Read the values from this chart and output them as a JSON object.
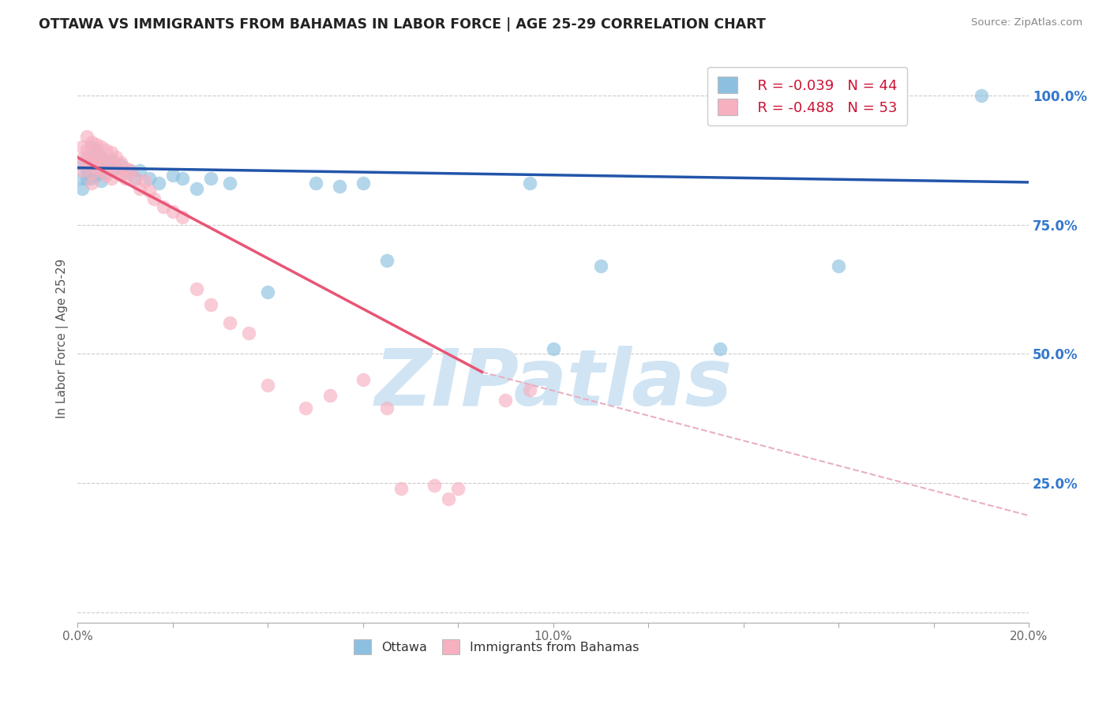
{
  "title": "OTTAWA VS IMMIGRANTS FROM BAHAMAS IN LABOR FORCE | AGE 25-29 CORRELATION CHART",
  "source_text": "Source: ZipAtlas.com",
  "ylabel": "In Labor Force | Age 25-29",
  "right_ytick_labels": [
    "100.0%",
    "75.0%",
    "50.0%",
    "25.0%",
    ""
  ],
  "right_ytick_values": [
    1.0,
    0.75,
    0.5,
    0.25,
    0.0
  ],
  "xlim": [
    0.0,
    0.2
  ],
  "ylim": [
    -0.02,
    1.08
  ],
  "xtick_labels": [
    "0.0%",
    "",
    "",
    "",
    "",
    "10.0%",
    "",
    "",
    "",
    "",
    "20.0%"
  ],
  "xtick_values": [
    0.0,
    0.02,
    0.04,
    0.06,
    0.08,
    0.1,
    0.12,
    0.14,
    0.16,
    0.18,
    0.2
  ],
  "legend_r_ottawa": "R = -0.039",
  "legend_n_ottawa": "N = 44",
  "legend_r_bahamas": "R = -0.488",
  "legend_n_bahamas": "N = 53",
  "ottawa_color": "#8dc0e0",
  "bahamas_color": "#f7b0c0",
  "ottawa_line_color": "#2255aa",
  "bahamas_line_color": "#e85575",
  "dashed_line_color": "#e8b0c0",
  "watermark_color": "#d0e4f4",
  "ottawa_x": [
    0.001,
    0.001,
    0.001,
    0.002,
    0.002,
    0.002,
    0.003,
    0.003,
    0.003,
    0.003,
    0.004,
    0.004,
    0.004,
    0.005,
    0.005,
    0.005,
    0.006,
    0.006,
    0.007,
    0.007,
    0.008,
    0.009,
    0.01,
    0.011,
    0.012,
    0.013,
    0.015,
    0.017,
    0.02,
    0.022,
    0.025,
    0.028,
    0.032,
    0.04,
    0.05,
    0.055,
    0.06,
    0.065,
    0.095,
    0.1,
    0.11,
    0.135,
    0.16,
    0.19
  ],
  "ottawa_y": [
    0.865,
    0.84,
    0.82,
    0.88,
    0.86,
    0.84,
    0.9,
    0.875,
    0.855,
    0.84,
    0.895,
    0.87,
    0.845,
    0.88,
    0.86,
    0.835,
    0.87,
    0.85,
    0.875,
    0.855,
    0.86,
    0.865,
    0.85,
    0.855,
    0.84,
    0.855,
    0.84,
    0.83,
    0.845,
    0.84,
    0.82,
    0.84,
    0.83,
    0.62,
    0.83,
    0.825,
    0.83,
    0.68,
    0.83,
    0.51,
    0.67,
    0.51,
    0.67,
    1.0
  ],
  "bahamas_x": [
    0.001,
    0.001,
    0.001,
    0.002,
    0.002,
    0.002,
    0.003,
    0.003,
    0.003,
    0.003,
    0.003,
    0.004,
    0.004,
    0.004,
    0.005,
    0.005,
    0.005,
    0.006,
    0.006,
    0.006,
    0.007,
    0.007,
    0.007,
    0.008,
    0.008,
    0.009,
    0.009,
    0.01,
    0.01,
    0.011,
    0.012,
    0.013,
    0.014,
    0.015,
    0.016,
    0.018,
    0.02,
    0.022,
    0.025,
    0.028,
    0.032,
    0.036,
    0.04,
    0.048,
    0.053,
    0.06,
    0.065,
    0.068,
    0.075,
    0.078,
    0.08,
    0.09,
    0.095
  ],
  "bahamas_y": [
    0.9,
    0.878,
    0.855,
    0.92,
    0.895,
    0.875,
    0.91,
    0.89,
    0.87,
    0.85,
    0.83,
    0.905,
    0.88,
    0.86,
    0.9,
    0.878,
    0.855,
    0.895,
    0.87,
    0.845,
    0.89,
    0.865,
    0.84,
    0.88,
    0.855,
    0.87,
    0.845,
    0.86,
    0.84,
    0.855,
    0.84,
    0.82,
    0.835,
    0.815,
    0.8,
    0.785,
    0.775,
    0.765,
    0.625,
    0.595,
    0.56,
    0.54,
    0.44,
    0.395,
    0.42,
    0.45,
    0.395,
    0.24,
    0.245,
    0.22,
    0.24,
    0.41,
    0.43
  ],
  "blue_line_x": [
    0.0,
    0.2
  ],
  "blue_line_y": [
    0.86,
    0.832
  ],
  "pink_line_x": [
    0.0,
    0.085
  ],
  "pink_line_y": [
    0.88,
    0.465
  ],
  "dashed_line_x": [
    0.085,
    0.205
  ],
  "dashed_line_y": [
    0.465,
    0.175
  ]
}
